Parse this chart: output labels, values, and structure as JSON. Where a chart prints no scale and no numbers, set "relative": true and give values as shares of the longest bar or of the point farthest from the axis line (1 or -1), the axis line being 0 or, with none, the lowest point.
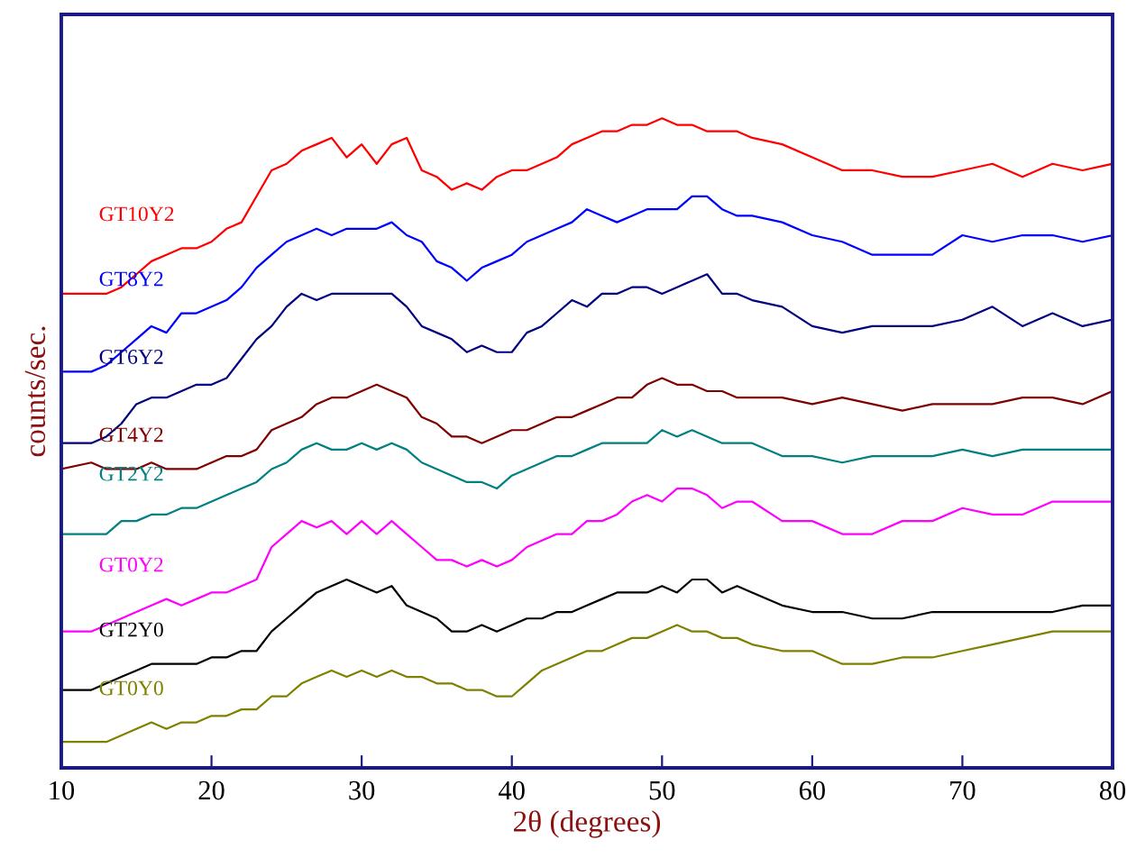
{
  "chart_data": {
    "type": "line",
    "xlabel": "2θ (degrees)",
    "ylabel": "counts/sec.",
    "relative": true,
    "tick_labels": "x",
    "xlim": [
      10,
      80
    ],
    "xticks": [
      10,
      20,
      30,
      40,
      50,
      60,
      70,
      80
    ],
    "x": [
      10,
      12,
      13,
      14,
      15,
      16,
      17,
      18,
      19,
      20,
      21,
      22,
      23,
      24,
      25,
      26,
      27,
      28,
      29,
      30,
      31,
      32,
      33,
      34,
      35,
      36,
      37,
      38,
      39,
      40,
      41,
      42,
      43,
      44,
      45,
      46,
      47,
      48,
      49,
      50,
      51,
      52,
      53,
      54,
      55,
      56,
      58,
      60,
      62,
      64,
      66,
      68,
      70,
      72,
      74,
      76,
      78,
      80
    ],
    "series": [
      {
        "name": "GT10Y2",
        "color": "#ff0000",
        "values": [
          0.73,
          0.73,
          0.73,
          0.74,
          0.76,
          0.78,
          0.79,
          0.8,
          0.8,
          0.81,
          0.83,
          0.84,
          0.88,
          0.92,
          0.93,
          0.95,
          0.96,
          0.97,
          0.94,
          0.96,
          0.93,
          0.96,
          0.97,
          0.92,
          0.91,
          0.89,
          0.9,
          0.89,
          0.91,
          0.92,
          0.92,
          0.93,
          0.94,
          0.96,
          0.97,
          0.98,
          0.98,
          0.99,
          0.99,
          1.0,
          0.99,
          0.99,
          0.98,
          0.98,
          0.98,
          0.97,
          0.96,
          0.94,
          0.92,
          0.92,
          0.91,
          0.91,
          0.92,
          0.93,
          0.91,
          0.93,
          0.92,
          0.93
        ]
      },
      {
        "name": "GT8Y2",
        "color": "#0000ff",
        "values": [
          0.61,
          0.61,
          0.62,
          0.64,
          0.66,
          0.68,
          0.67,
          0.7,
          0.7,
          0.71,
          0.72,
          0.74,
          0.77,
          0.79,
          0.81,
          0.82,
          0.83,
          0.82,
          0.83,
          0.83,
          0.83,
          0.84,
          0.82,
          0.81,
          0.78,
          0.77,
          0.75,
          0.77,
          0.78,
          0.79,
          0.81,
          0.82,
          0.83,
          0.84,
          0.86,
          0.85,
          0.84,
          0.85,
          0.86,
          0.86,
          0.86,
          0.88,
          0.88,
          0.86,
          0.85,
          0.85,
          0.84,
          0.82,
          0.81,
          0.79,
          0.79,
          0.79,
          0.82,
          0.81,
          0.82,
          0.82,
          0.81,
          0.82
        ]
      },
      {
        "name": "GT6Y2",
        "color": "#000080",
        "values": [
          0.5,
          0.5,
          0.51,
          0.53,
          0.56,
          0.57,
          0.57,
          0.58,
          0.59,
          0.59,
          0.6,
          0.63,
          0.66,
          0.68,
          0.71,
          0.73,
          0.72,
          0.73,
          0.73,
          0.73,
          0.73,
          0.73,
          0.71,
          0.68,
          0.67,
          0.66,
          0.64,
          0.65,
          0.64,
          0.64,
          0.67,
          0.68,
          0.7,
          0.72,
          0.71,
          0.73,
          0.73,
          0.74,
          0.74,
          0.73,
          0.74,
          0.75,
          0.76,
          0.73,
          0.73,
          0.72,
          0.71,
          0.68,
          0.67,
          0.68,
          0.68,
          0.68,
          0.69,
          0.71,
          0.68,
          0.7,
          0.68,
          0.69
        ]
      },
      {
        "name": "GT4Y2",
        "color": "#800000",
        "values": [
          0.46,
          0.47,
          0.46,
          0.46,
          0.46,
          0.47,
          0.46,
          0.46,
          0.46,
          0.47,
          0.48,
          0.48,
          0.49,
          0.52,
          0.53,
          0.54,
          0.56,
          0.57,
          0.57,
          0.58,
          0.59,
          0.58,
          0.57,
          0.54,
          0.53,
          0.51,
          0.51,
          0.5,
          0.51,
          0.52,
          0.52,
          0.53,
          0.54,
          0.54,
          0.55,
          0.56,
          0.57,
          0.57,
          0.59,
          0.6,
          0.59,
          0.59,
          0.58,
          0.58,
          0.57,
          0.57,
          0.57,
          0.56,
          0.57,
          0.56,
          0.55,
          0.56,
          0.56,
          0.56,
          0.57,
          0.57,
          0.56,
          0.58
        ]
      },
      {
        "name": "GT2Y2",
        "color": "#008080",
        "values": [
          0.36,
          0.36,
          0.36,
          0.38,
          0.38,
          0.39,
          0.39,
          0.4,
          0.4,
          0.41,
          0.42,
          0.43,
          0.44,
          0.46,
          0.47,
          0.49,
          0.5,
          0.49,
          0.49,
          0.5,
          0.49,
          0.5,
          0.49,
          0.47,
          0.46,
          0.45,
          0.44,
          0.44,
          0.43,
          0.45,
          0.46,
          0.47,
          0.48,
          0.48,
          0.49,
          0.5,
          0.5,
          0.5,
          0.5,
          0.52,
          0.51,
          0.52,
          0.51,
          0.5,
          0.5,
          0.5,
          0.48,
          0.48,
          0.47,
          0.48,
          0.48,
          0.48,
          0.49,
          0.48,
          0.49,
          0.49,
          0.49,
          0.49
        ]
      },
      {
        "name": "GT0Y2",
        "color": "#ff00ff",
        "values": [
          0.21,
          0.21,
          0.22,
          0.23,
          0.24,
          0.25,
          0.26,
          0.25,
          0.26,
          0.27,
          0.27,
          0.28,
          0.29,
          0.34,
          0.36,
          0.38,
          0.37,
          0.38,
          0.36,
          0.38,
          0.36,
          0.38,
          0.36,
          0.34,
          0.32,
          0.32,
          0.31,
          0.32,
          0.31,
          0.32,
          0.34,
          0.35,
          0.36,
          0.36,
          0.38,
          0.38,
          0.39,
          0.41,
          0.42,
          0.41,
          0.43,
          0.43,
          0.42,
          0.4,
          0.41,
          0.41,
          0.38,
          0.38,
          0.36,
          0.36,
          0.38,
          0.38,
          0.4,
          0.39,
          0.39,
          0.41,
          0.41,
          0.41
        ]
      },
      {
        "name": "GT2Y0",
        "color": "#000000",
        "values": [
          0.12,
          0.12,
          0.13,
          0.14,
          0.15,
          0.16,
          0.16,
          0.16,
          0.16,
          0.17,
          0.17,
          0.18,
          0.18,
          0.21,
          0.23,
          0.25,
          0.27,
          0.28,
          0.29,
          0.28,
          0.27,
          0.28,
          0.25,
          0.24,
          0.23,
          0.21,
          0.21,
          0.22,
          0.21,
          0.22,
          0.23,
          0.23,
          0.24,
          0.24,
          0.25,
          0.26,
          0.27,
          0.27,
          0.27,
          0.28,
          0.27,
          0.29,
          0.29,
          0.27,
          0.28,
          0.27,
          0.25,
          0.24,
          0.24,
          0.23,
          0.23,
          0.24,
          0.24,
          0.24,
          0.24,
          0.24,
          0.25,
          0.25
        ]
      },
      {
        "name": "GT0Y0",
        "color": "#808000",
        "values": [
          0.04,
          0.04,
          0.04,
          0.05,
          0.06,
          0.07,
          0.06,
          0.07,
          0.07,
          0.08,
          0.08,
          0.09,
          0.09,
          0.11,
          0.11,
          0.13,
          0.14,
          0.15,
          0.14,
          0.15,
          0.14,
          0.15,
          0.14,
          0.14,
          0.13,
          0.13,
          0.12,
          0.12,
          0.11,
          0.11,
          0.13,
          0.15,
          0.16,
          0.17,
          0.18,
          0.18,
          0.19,
          0.2,
          0.2,
          0.21,
          0.22,
          0.21,
          0.21,
          0.2,
          0.2,
          0.19,
          0.18,
          0.18,
          0.16,
          0.16,
          0.17,
          0.17,
          0.18,
          0.19,
          0.2,
          0.21,
          0.21,
          0.21
        ]
      }
    ]
  }
}
